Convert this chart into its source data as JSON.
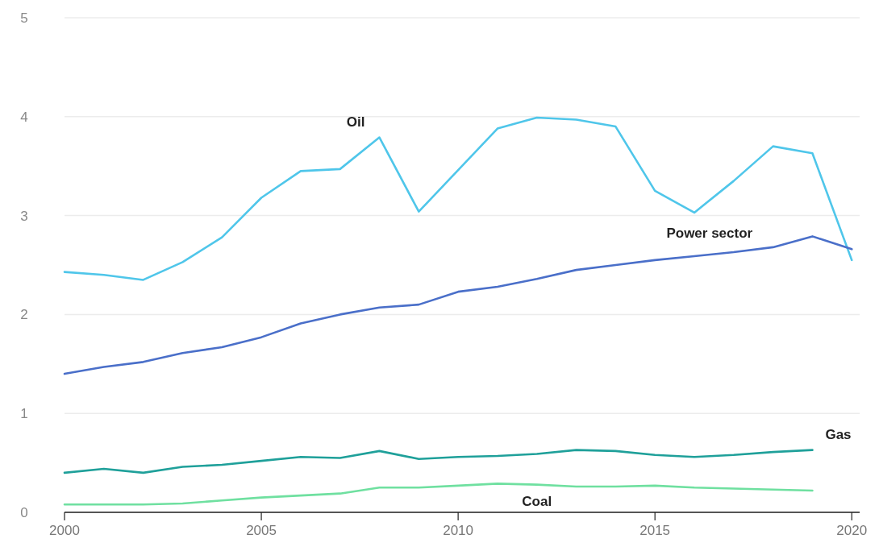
{
  "chart_data": {
    "type": "line",
    "x": [
      2000,
      2001,
      2002,
      2003,
      2004,
      2005,
      2006,
      2007,
      2008,
      2009,
      2010,
      2011,
      2012,
      2013,
      2014,
      2015,
      2016,
      2017,
      2018,
      2019,
      2020
    ],
    "series": [
      {
        "name": "Oil",
        "color": "#4fc6ea",
        "values": [
          2.43,
          2.4,
          2.35,
          2.53,
          2.78,
          3.18,
          3.45,
          3.47,
          3.79,
          3.04,
          3.46,
          3.88,
          3.99,
          3.97,
          3.9,
          3.25,
          3.03,
          3.35,
          3.7,
          3.63,
          2.55
        ]
      },
      {
        "name": "Power sector",
        "color": "#4a6fc9",
        "values": [
          1.4,
          1.47,
          1.52,
          1.61,
          1.67,
          1.77,
          1.91,
          2.0,
          2.07,
          2.1,
          2.23,
          2.28,
          2.36,
          2.45,
          2.5,
          2.55,
          2.59,
          2.63,
          2.68,
          2.79,
          2.66
        ]
      },
      {
        "name": "Gas",
        "color": "#1fa09a",
        "values": [
          0.4,
          0.44,
          0.4,
          0.46,
          0.48,
          0.52,
          0.56,
          0.55,
          0.62,
          0.54,
          0.56,
          0.57,
          0.59,
          0.63,
          0.62,
          0.58,
          0.56,
          0.58,
          0.61,
          0.63,
          null
        ]
      },
      {
        "name": "Coal",
        "color": "#6fe0a0",
        "values": [
          0.08,
          0.08,
          0.08,
          0.09,
          0.12,
          0.15,
          0.17,
          0.19,
          0.25,
          0.25,
          0.27,
          0.29,
          0.28,
          0.26,
          0.26,
          0.27,
          0.25,
          0.24,
          0.23,
          0.22,
          null
        ]
      }
    ],
    "xlim": [
      2000,
      2020.2
    ],
    "xticks": [
      2000,
      2005,
      2010,
      2015,
      2020
    ],
    "ylim": [
      0,
      5
    ],
    "yticks": [
      0,
      1,
      2,
      3,
      4,
      5
    ],
    "grid": "y",
    "legend": false,
    "marker": "none",
    "line_style": "solid"
  }
}
